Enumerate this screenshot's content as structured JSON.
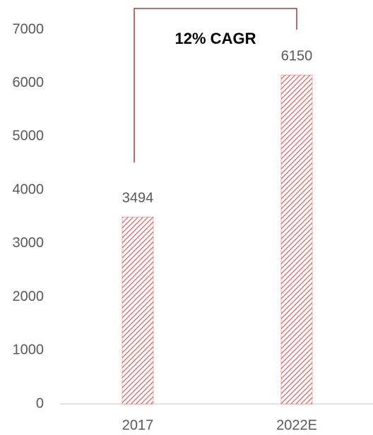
{
  "chart_data": {
    "type": "bar",
    "annotation": "12% CAGR",
    "categories": [
      "2017",
      "2022E"
    ],
    "values": [
      3494,
      6150
    ],
    "color": "#e05a5a",
    "ylim": [
      0,
      7000
    ],
    "yticks": [
      0,
      1000,
      2000,
      3000,
      4000,
      5000,
      6000,
      7000
    ],
    "grid": false
  }
}
